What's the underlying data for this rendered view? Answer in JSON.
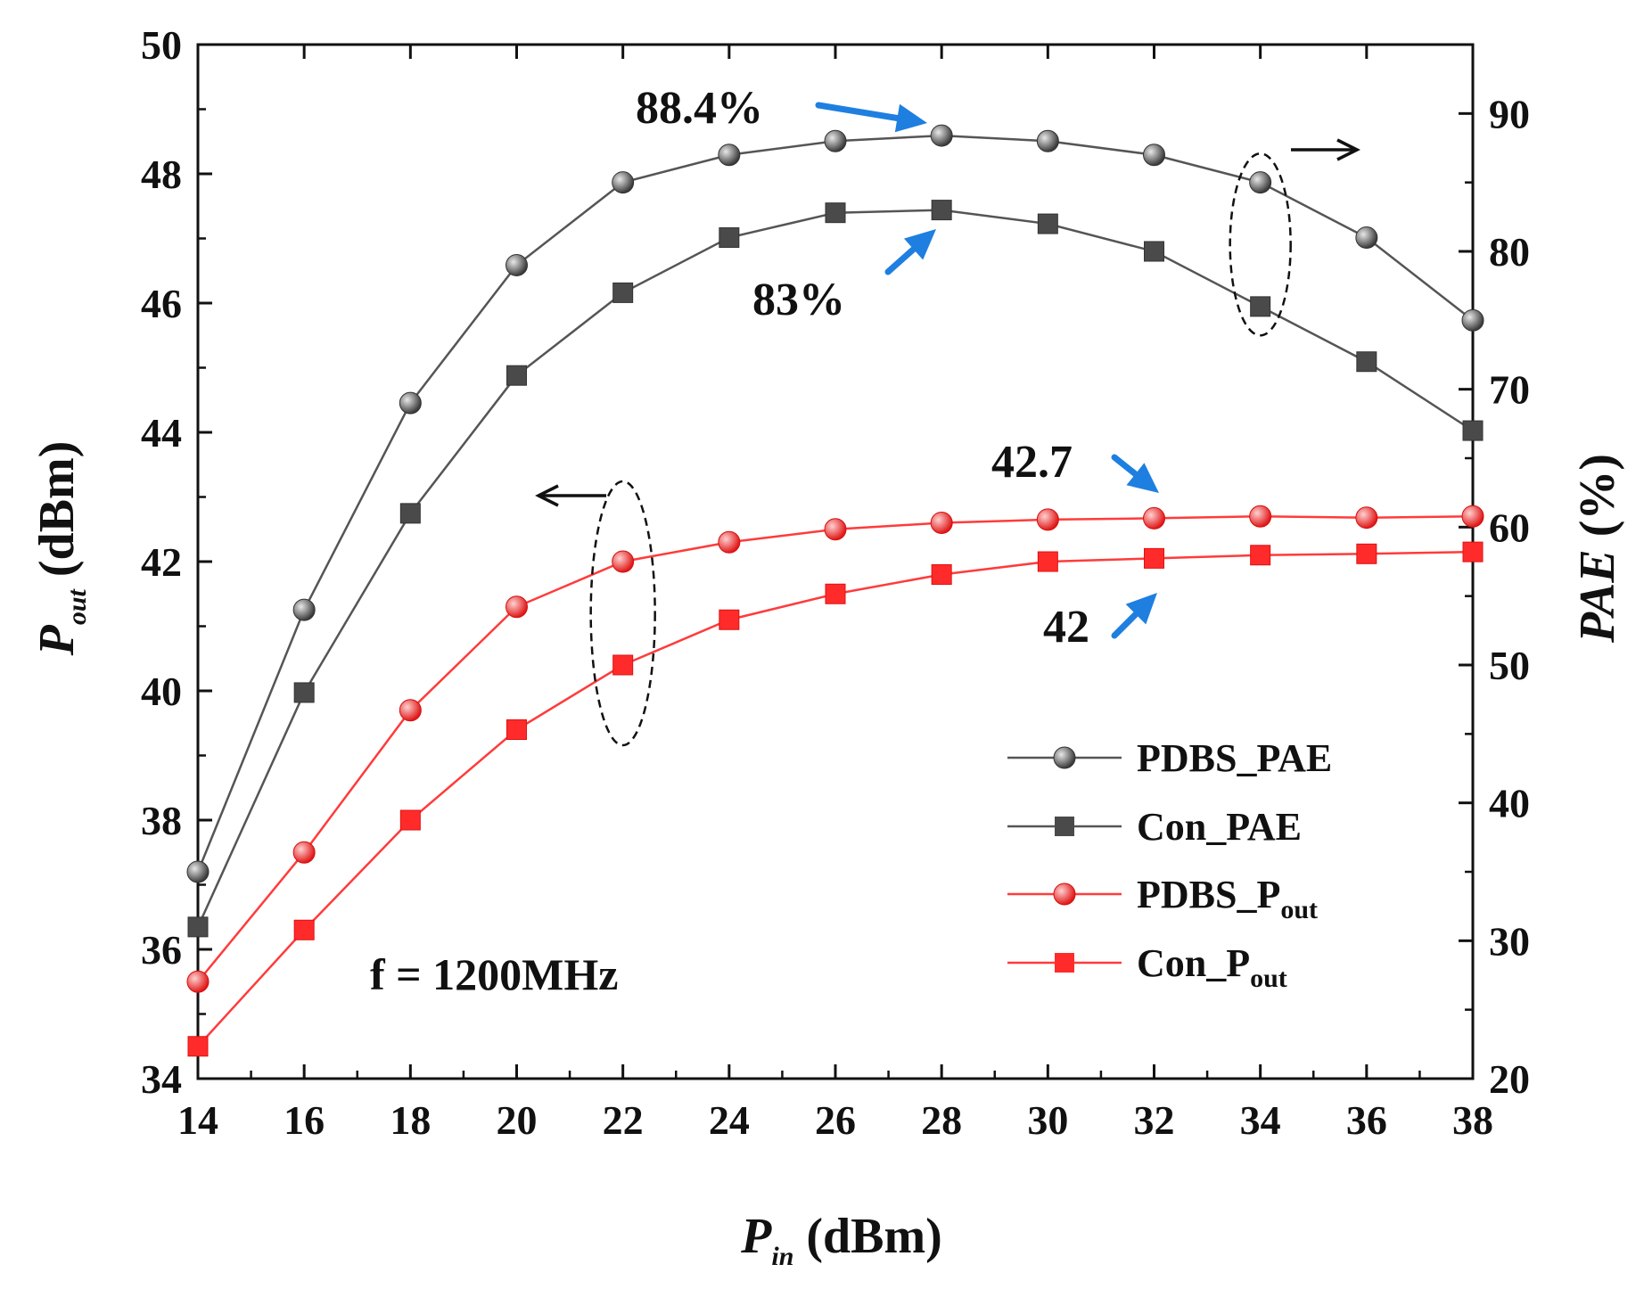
{
  "chart_data": {
    "type": "line",
    "x": [
      14,
      16,
      18,
      20,
      22,
      24,
      26,
      28,
      30,
      32,
      34,
      36,
      38
    ],
    "xlabel": {
      "main": "P",
      "sub": "in",
      "unit": " (dBm)"
    },
    "ylabel_left": {
      "main": "P",
      "sub": "out",
      "unit": " (dBm)"
    },
    "ylabel_right": {
      "main": "PAE",
      "unit": " (%)"
    },
    "xlim": [
      14,
      38
    ],
    "ylim_left": [
      34,
      50
    ],
    "ylim_right": [
      20,
      95
    ],
    "x_ticks": [
      14,
      16,
      18,
      20,
      22,
      24,
      26,
      28,
      30,
      32,
      34,
      36,
      38
    ],
    "y_left_ticks": [
      34,
      36,
      38,
      40,
      42,
      44,
      46,
      48,
      50
    ],
    "y_right_ticks": [
      20,
      30,
      40,
      50,
      60,
      70,
      80,
      90
    ],
    "series": [
      {
        "name": "PDBS_PAE",
        "label_main": "PDBS_PAE",
        "label_sub": "",
        "axis": "right",
        "marker": "circle",
        "color": "#555555",
        "values": [
          35.0,
          54.0,
          69.0,
          79.0,
          85.0,
          87.0,
          88.0,
          88.4,
          88.0,
          87.0,
          85.0,
          81.0,
          75.0
        ]
      },
      {
        "name": "Con_PAE",
        "label_main": "Con_PAE",
        "label_sub": "",
        "axis": "right",
        "marker": "square",
        "color": "#555555",
        "values": [
          31.0,
          48.0,
          61.0,
          71.0,
          77.0,
          81.0,
          82.8,
          83.0,
          82.0,
          80.0,
          76.0,
          72.0,
          67.0
        ]
      },
      {
        "name": "PDBS_Pout",
        "label_main": "PDBS_P",
        "label_sub": "out",
        "axis": "left",
        "marker": "circle",
        "color": "#ff3b3b",
        "values": [
          35.5,
          37.5,
          39.7,
          41.3,
          42.0,
          42.3,
          42.5,
          42.6,
          42.65,
          42.67,
          42.7,
          42.68,
          42.7
        ]
      },
      {
        "name": "Con_Pout",
        "label_main": "Con_P",
        "label_sub": "out",
        "axis": "left",
        "marker": "square",
        "color": "#ff3b3b",
        "values": [
          34.5,
          36.3,
          38.0,
          39.4,
          40.4,
          41.1,
          41.5,
          41.8,
          42.0,
          42.05,
          42.1,
          42.12,
          42.15
        ]
      }
    ],
    "annotations": [
      {
        "text": "88.4%",
        "points_to": {
          "x": 28,
          "y": 88.4,
          "axis": "right"
        }
      },
      {
        "text": "83%",
        "points_to": {
          "x": 28,
          "y": 83,
          "axis": "right"
        }
      },
      {
        "text": "42.7",
        "points_to": {
          "x": 32,
          "y": 42.67,
          "axis": "left"
        }
      },
      {
        "text": "42",
        "points_to": {
          "x": 32,
          "y": 42.05,
          "axis": "left"
        }
      }
    ],
    "condition_text": "f = 1200MHz",
    "arrow_color": "#1e7fe0"
  }
}
